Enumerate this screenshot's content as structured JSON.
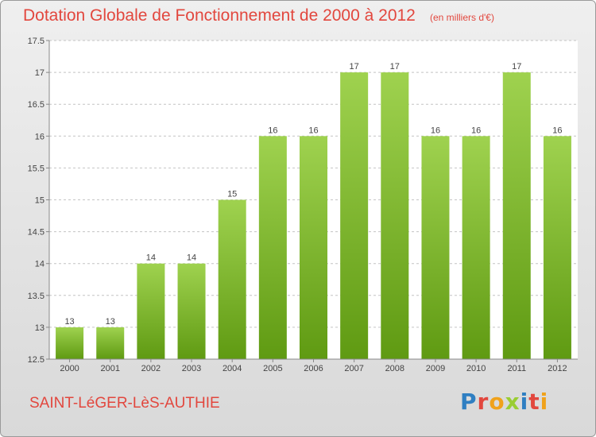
{
  "title": "Dotation Globale de Fonctionnement de 2000 à 2012",
  "subtitle": "(en milliers d'€)",
  "commune": "SAINT-LéGER-LèS-AUTHIE",
  "logo": {
    "letters": [
      "P",
      "r",
      "o",
      "x",
      "i",
      "t",
      "i"
    ],
    "colors": [
      "#2f7fc2",
      "#e2473e",
      "#f0a21b",
      "#9acd32",
      "#2f7fc2",
      "#e2473e",
      "#f0a21b"
    ]
  },
  "colors": {
    "bar_top": "#9fd24f",
    "bar_bottom": "#5f9a12",
    "grid": "#c4c4c4",
    "text_red": "#e2473e"
  },
  "chart_data": {
    "type": "bar",
    "categories": [
      "2000",
      "2001",
      "2002",
      "2003",
      "2004",
      "2005",
      "2006",
      "2007",
      "2008",
      "2009",
      "2010",
      "2011",
      "2012"
    ],
    "values": [
      13,
      13,
      14,
      14,
      15,
      16,
      16,
      17,
      17,
      16,
      16,
      17,
      16
    ],
    "ylim": [
      12.5,
      17.5
    ],
    "yticks": [
      "12.5",
      "13",
      "13.5",
      "14",
      "14.5",
      "15",
      "15.5",
      "16",
      "16.5",
      "17",
      "17.5"
    ],
    "grid": "horizontal, dashed"
  }
}
